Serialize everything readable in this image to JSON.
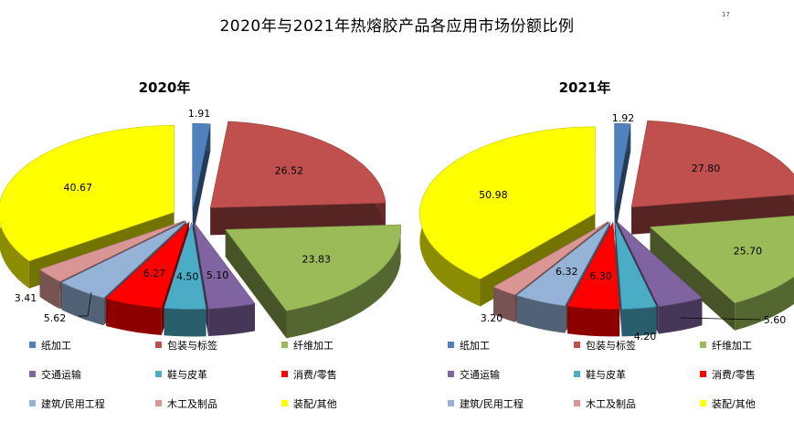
{
  "title": "2020年与2021年热熔胶产品各应用市场份额比例",
  "page_number": "17",
  "categories": [
    "纸加工",
    "包装与标签",
    "纤维加工",
    "交通运输",
    "鞋与皮革",
    "消费/零售",
    "建筑/民用工程",
    "木工及制品",
    "装配/其他"
  ],
  "colors": [
    "#4f81bd",
    "#c0504d",
    "#9bbb59",
    "#8064a2",
    "#4bacc6",
    "#ff0000",
    "#95b3d7",
    "#d99694",
    "#ffff00"
  ],
  "chart_data": [
    {
      "type": "pie",
      "title": "2020年",
      "categories": [
        "纸加工",
        "包装与标签",
        "纤维加工",
        "交通运输",
        "鞋与皮革",
        "消费/零售",
        "建筑/民用工程",
        "木工及制品",
        "装配/其他"
      ],
      "values": [
        1.91,
        26.52,
        23.83,
        5.1,
        4.5,
        6.27,
        5.62,
        3.41,
        40.67
      ],
      "labels": [
        "1.91",
        "26.52",
        "23.83",
        "5.10",
        "4.50",
        "6.27",
        "5.62",
        "3.41",
        "40.67"
      ],
      "style": "3d-exploded",
      "legend": "bottom"
    },
    {
      "type": "pie",
      "title": "2021年",
      "categories": [
        "纸加工",
        "包装与标签",
        "纤维加工",
        "交通运输",
        "鞋与皮革",
        "消费/零售",
        "建筑/民用工程",
        "木工及制品",
        "装配/其他"
      ],
      "values": [
        1.92,
        27.8,
        25.7,
        5.6,
        4.2,
        6.3,
        6.32,
        3.2,
        50.98
      ],
      "labels": [
        "1.92",
        "27.80",
        "25.70",
        "5.60",
        "4.20",
        "6.30",
        "6.32",
        "3.20",
        "50.98"
      ],
      "style": "3d-exploded",
      "legend": "bottom"
    }
  ]
}
